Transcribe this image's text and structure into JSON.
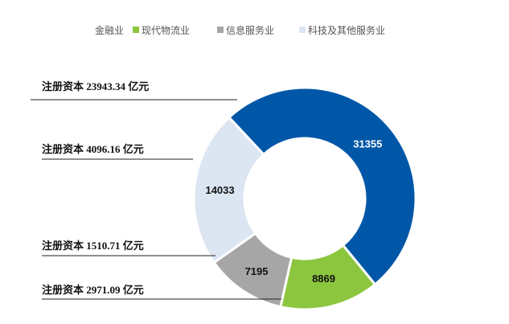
{
  "chart_data": {
    "type": "pie",
    "donut": true,
    "categories": [
      "金融业",
      "现代物流业",
      "信息服务业",
      "科技及其他服务业"
    ],
    "values": [
      31355,
      8869,
      7195,
      14033
    ],
    "colors": [
      "#0057A8",
      "#8CC63F",
      "#A6A6A6",
      "#DCE6F2"
    ],
    "label_colors": [
      "#ffffff",
      "#111111",
      "#111111",
      "#111111"
    ],
    "legend_position": "top",
    "callouts": [
      {
        "text": "注册资本 23943.34 亿元",
        "category": "金融业"
      },
      {
        "text": "注册资本 4096.16 亿元",
        "category": "科技及其他服务业"
      },
      {
        "text": "注册资本 1510.71 亿元",
        "category": "信息服务业"
      },
      {
        "text": "注册资本 2971.09 亿元",
        "category": "现代物流业"
      }
    ]
  }
}
